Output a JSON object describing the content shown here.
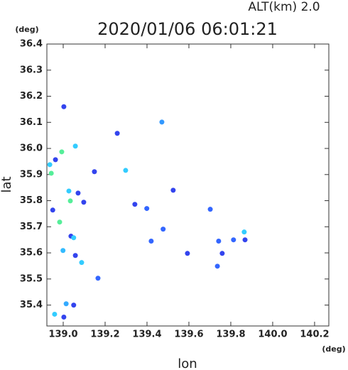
{
  "chart_data": {
    "type": "scatter",
    "title": "2020/01/06 06:01:21",
    "subtitle": "ALT(km) 2.0",
    "x_label": "lon",
    "y_label": "lat",
    "x_unit": "(deg)",
    "y_unit": "(deg)",
    "x": [
      139.003,
      138.963,
      138.993,
      139.058,
      138.936,
      138.943,
      139.027,
      139.034,
      138.95,
      138.983,
      139.037,
      139.05,
      138.999,
      139.058,
      139.088,
      139.014,
      139.003,
      139.05,
      138.959,
      139.258,
      139.471,
      139.298,
      139.149,
      139.525,
      139.342,
      139.399,
      139.477,
      139.42,
      139.593,
      139.702,
      139.736,
      139.759,
      139.813,
      139.864,
      139.868,
      139.742,
      139.166,
      139.098,
      139.071
    ],
    "values": [
      36.16,
      35.957,
      35.987,
      36.009,
      35.938,
      35.905,
      35.837,
      35.799,
      35.764,
      35.718,
      35.664,
      35.658,
      35.609,
      35.59,
      35.563,
      35.405,
      35.354,
      35.4,
      35.365,
      36.058,
      36.101,
      35.916,
      35.911,
      35.84,
      35.786,
      35.77,
      35.691,
      35.645,
      35.598,
      35.767,
      35.549,
      35.598,
      35.65,
      35.68,
      35.65,
      35.645,
      35.503,
      35.794,
      35.829
    ],
    "point_colors": [
      "#3344ee",
      "#3344ee",
      "#55ee99",
      "#33ccff",
      "#33ccff",
      "#55ee99",
      "#33ccff",
      "#55ee99",
      "#3344ee",
      "#55ee99",
      "#3344ee",
      "#33ccff",
      "#33bbff",
      "#3344ee",
      "#33ccff",
      "#33aaff",
      "#3344ee",
      "#3344ee",
      "#33ccff",
      "#3344ee",
      "#3399ff",
      "#33ccff",
      "#3344ee",
      "#3344ee",
      "#3344ee",
      "#3366ff",
      "#3366ff",
      "#3366ff",
      "#3344ee",
      "#3366ff",
      "#3366ff",
      "#3344ee",
      "#3366ff",
      "#33ccff",
      "#3344ee",
      "#3366ff",
      "#3366ff",
      "#3344ee",
      "#3344ee"
    ],
    "xlim": [
      138.922,
      140.268
    ],
    "ylim": [
      35.32,
      36.4
    ],
    "xticks": [
      {
        "value": 139,
        "label": "139.0"
      },
      139.2,
      139.4,
      139.6,
      139.8,
      {
        "value": 140,
        "label": "140.0"
      },
      140.2
    ],
    "yticks": [
      35.4,
      35.5,
      35.6,
      35.7,
      35.8,
      35.9,
      {
        "value": 36,
        "label": "36.0"
      },
      36.1,
      36.2,
      36.3,
      36.4
    ]
  }
}
